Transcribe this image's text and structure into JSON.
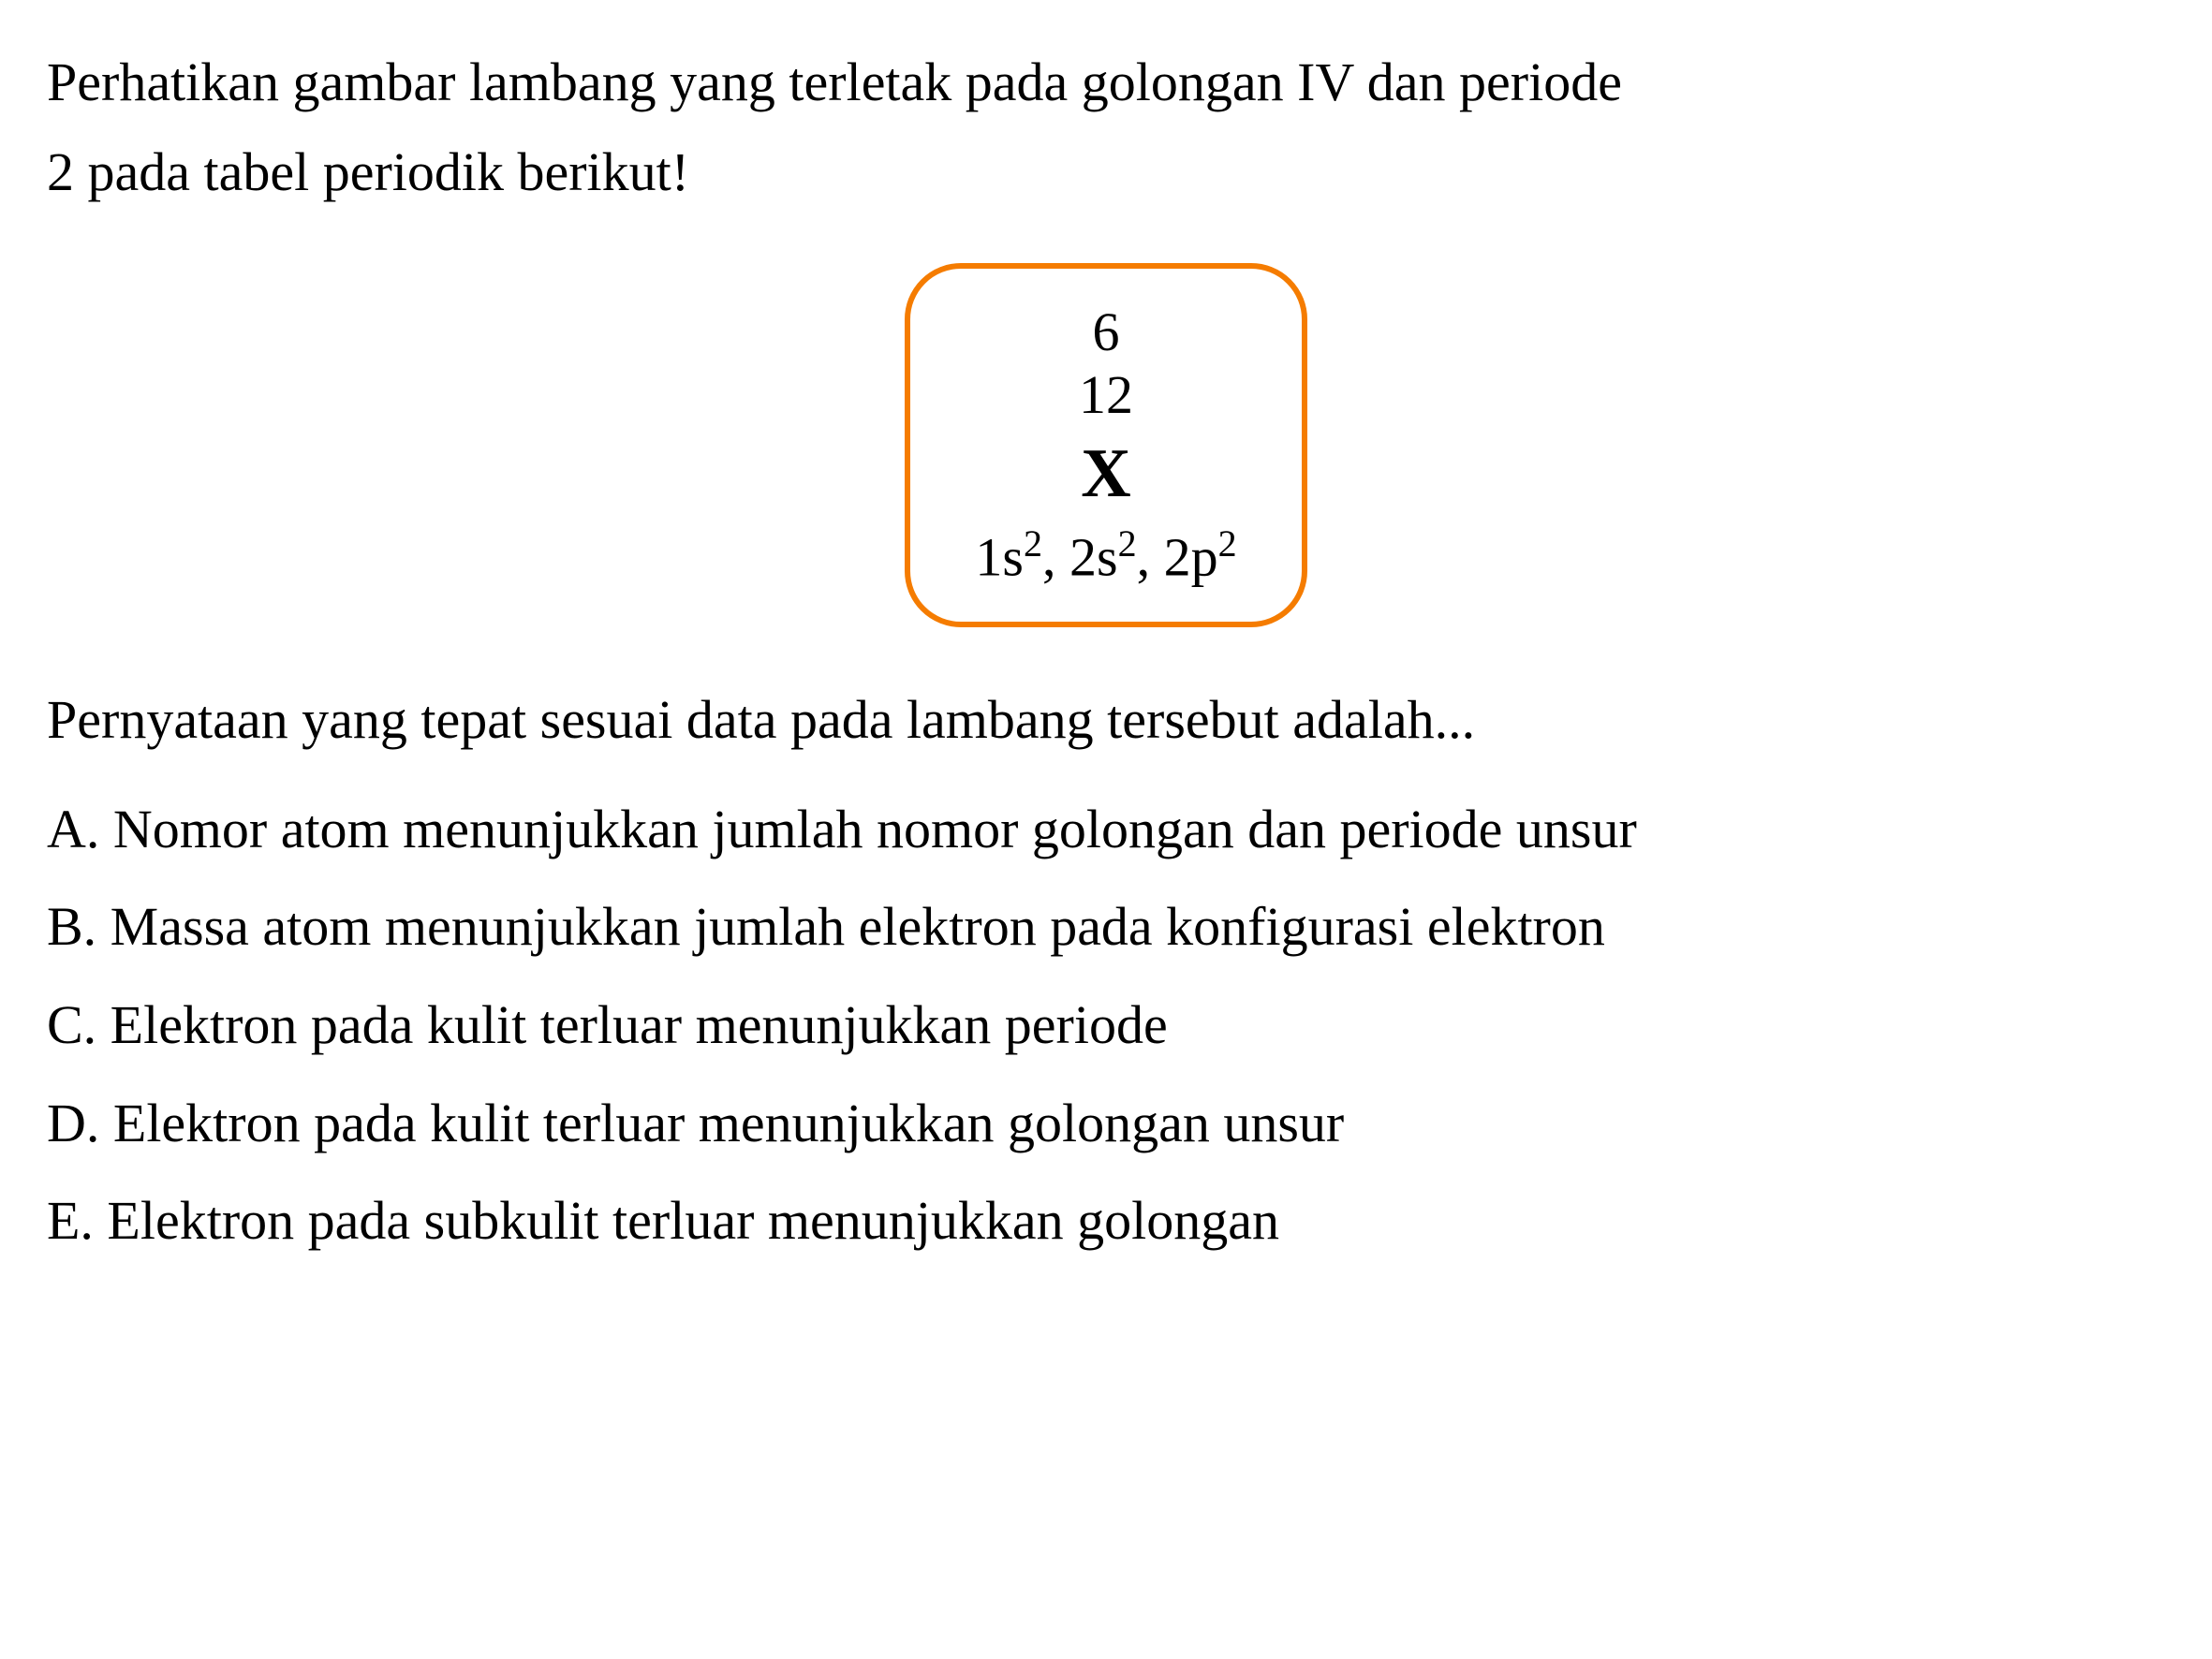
{
  "intro": {
    "line1": "Perhatikan gambar lambang yang terletak pada golongan IV dan periode",
    "line2": "2 pada tabel periodik berikut!"
  },
  "element": {
    "atomic_number": "6",
    "mass_number": "12",
    "symbol": "X",
    "config_parts": {
      "s1_base": "1s",
      "s1_sup": "2",
      "sep1": ", ",
      "s2_base": "2s",
      "s2_sup": "2",
      "sep2": ", ",
      "p2_base": "2p",
      "p2_sup": "2"
    },
    "box_border_color": "#f57c00",
    "box_border_radius": 60,
    "box_border_width": 6
  },
  "question": "Pernyataan yang tepat sesuai data pada lambang tersebut adalah...",
  "options": {
    "a": "A. Nomor atom menunjukkan jumlah nomor golongan dan periode unsur",
    "b": "B. Massa atom menunjukkan jumlah elektron pada konfigurasi elektron",
    "c": "C. Elektron pada kulit terluar menunjukkan periode",
    "d": "D. Elektron pada kulit terluar menunjukkan golongan unsur",
    "e": "E. Elektron pada subkulit terluar menunjukkan golongan"
  },
  "colors": {
    "background": "#ffffff",
    "text": "#000000",
    "box_border": "#f57c00"
  },
  "typography": {
    "body_fontsize": 58,
    "symbol_fontsize": 74,
    "sup_fontsize": 40,
    "font_family": "Times New Roman"
  }
}
